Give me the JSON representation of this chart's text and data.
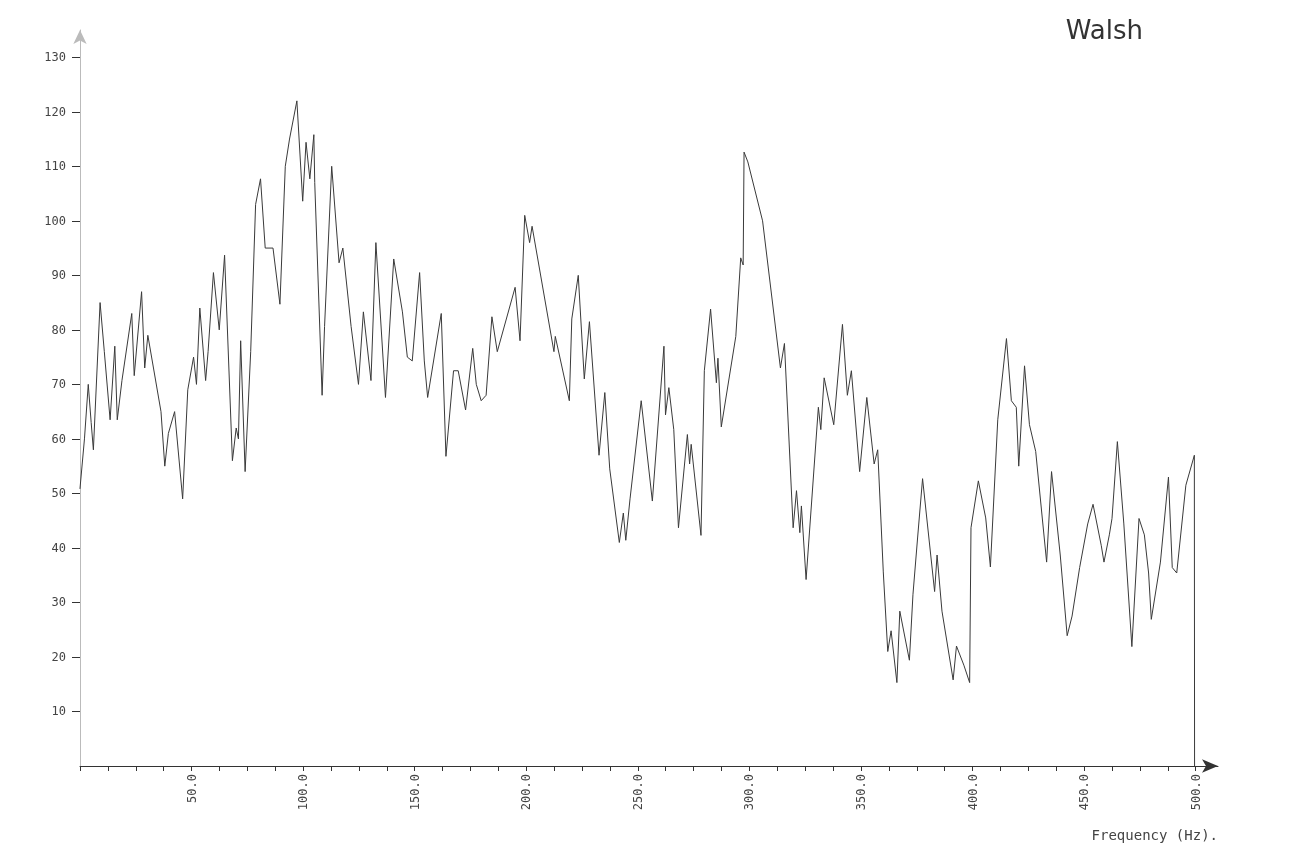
{
  "chart_data": {
    "type": "line",
    "title": "Walsh",
    "xlabel": "Frequency (Hz).",
    "x": [
      0,
      2,
      3.7,
      5,
      6,
      9,
      10.9,
      13.5,
      15.6,
      16.7,
      18.8,
      23.2,
      24.3,
      27.6,
      29,
      30.4,
      36.3,
      38,
      39.6,
      42.4,
      46,
      48.3,
      50.9,
      52.2,
      53.7,
      56.3,
      57.4,
      59.8,
      62.4,
      64.8,
      68.3,
      70,
      71,
      72,
      74,
      76.5,
      78.7,
      80.9,
      83,
      86.5,
      89.6,
      92,
      93.9,
      97.2,
      99.8,
      101.3,
      103,
      104.8,
      105.2,
      108.5,
      109.6,
      112.8,
      116.1,
      117.8,
      121.5,
      124.8,
      127,
      130.4,
      132.6,
      136.9,
      140.6,
      144.5,
      146.7,
      148.9,
      152.2,
      154.3,
      155.8,
      161.9,
      164,
      167.4,
      169.5,
      172.8,
      176,
      177.6,
      179.8,
      182,
      184.6,
      187,
      195,
      197.2,
      199.3,
      201.5,
      202.6,
      212.4,
      213,
      219.3,
      220.4,
      223.3,
      226,
      228.3,
      232.6,
      235.2,
      237.4,
      241.7,
      243.5,
      244.6,
      246.5,
      251.5,
      256.5,
      261.7,
      262.4,
      263.9,
      266.1,
      268.2,
      272.2,
      273.2,
      273.9,
      278.3,
      279.8,
      282.6,
      285.2,
      285.9,
      287.4,
      293.9,
      296.1,
      297.2,
      297.6,
      299.3,
      305.9,
      313.9,
      315.7,
      319.6,
      321.1,
      322.6,
      323.3,
      325.4,
      330.9,
      332,
      333.5,
      337.8,
      341.7,
      343.9,
      345.7,
      349.4,
      352.6,
      355.9,
      357.5,
      360,
      362,
      363.5,
      366.1,
      367.4,
      371.7,
      373.3,
      375.4,
      377.6,
      383,
      384.1,
      386.3,
      391.3,
      392.8,
      396.1,
      398.7,
      399.3,
      402.6,
      405.9,
      408,
      411.3,
      415.2,
      417.4,
      419.6,
      420.7,
      423.3,
      425.5,
      428.3,
      433.2,
      435.4,
      439.3,
      442.4,
      444.6,
      448,
      451.6,
      454,
      457.7,
      458.9,
      461.3,
      462.5,
      464.9,
      467.8,
      471.4,
      474.6,
      477,
      478.9,
      480.1,
      484.2,
      487.8,
      489.5,
      491.5,
      495.6,
      499.4,
      499.5
    ],
    "values": [
      50.9,
      60,
      70,
      63,
      58,
      85,
      76,
      63.5,
      77,
      63.5,
      70.7,
      83,
      71.6,
      87,
      73,
      79,
      65,
      55,
      61,
      65,
      49,
      69,
      75,
      70,
      84,
      70.7,
      76,
      90.5,
      80,
      93.7,
      56,
      62,
      60,
      78,
      54,
      76,
      103,
      107.7,
      95,
      95,
      84.7,
      110,
      115,
      122,
      103.6,
      114.4,
      107.7,
      115.8,
      107,
      68,
      80.6,
      110,
      92.3,
      95,
      80.6,
      70,
      83.3,
      70.7,
      96,
      67.6,
      93,
      83.3,
      75,
      74.3,
      90.5,
      74.3,
      67.6,
      83,
      56.8,
      72.5,
      72.5,
      65.3,
      76.6,
      70,
      67,
      68,
      82.4,
      76,
      87.8,
      78,
      101,
      96,
      99,
      76,
      78.8,
      67,
      82,
      90,
      71,
      81.5,
      57,
      68.5,
      54.5,
      41,
      46.4,
      41.4,
      49,
      67,
      48.6,
      77,
      64.4,
      69.4,
      61.7,
      43.7,
      60.8,
      55.4,
      59,
      42.3,
      72.5,
      83.8,
      70.3,
      74.8,
      62.2,
      78.8,
      93.2,
      91.9,
      112.6,
      110.8,
      100,
      73,
      77.5,
      43.7,
      50.5,
      42.8,
      47.7,
      34.2,
      65.8,
      61.7,
      71.2,
      62.6,
      81,
      68,
      72.5,
      54,
      67.6,
      55.4,
      58,
      35.6,
      21,
      24.8,
      15.3,
      28.4,
      19.4,
      31.5,
      42,
      52.7,
      32,
      38.7,
      28.4,
      15.8,
      22,
      18.5,
      15.3,
      43.7,
      52.3,
      45.5,
      36.5,
      63.5,
      78.4,
      67,
      65.8,
      55,
      73.4,
      62.6,
      57.7,
      37.4,
      54,
      38.7,
      23.9,
      27.5,
      36.4,
      44.4,
      48,
      40.4,
      37.4,
      42.4,
      45.4,
      59.5,
      44.4,
      21.9,
      45.4,
      42.4,
      35.4,
      26.9,
      37.4,
      53,
      36.4,
      35.4,
      51.5,
      57,
      0
    ],
    "color": "#3a3a3a",
    "marker": "none",
    "line_style": "solid",
    "grid": false,
    "xlim": [
      0,
      510
    ],
    "ylim": [
      0,
      135
    ],
    "xticks": [
      {
        "value": 0,
        "label": null
      },
      {
        "value": 12.5,
        "label": null
      },
      {
        "value": 25,
        "label": null
      },
      {
        "value": 37.5,
        "label": null
      },
      {
        "value": 50,
        "label": "50.0"
      },
      {
        "value": 62.5,
        "label": null
      },
      {
        "value": 75,
        "label": null
      },
      {
        "value": 87.5,
        "label": null
      },
      {
        "value": 100,
        "label": "100.0"
      },
      {
        "value": 112.5,
        "label": null
      },
      {
        "value": 125,
        "label": null
      },
      {
        "value": 137.5,
        "label": null
      },
      {
        "value": 150,
        "label": "150.0"
      },
      {
        "value": 162.5,
        "label": null
      },
      {
        "value": 175,
        "label": null
      },
      {
        "value": 187.5,
        "label": null
      },
      {
        "value": 200,
        "label": "200.0"
      },
      {
        "value": 212.5,
        "label": null
      },
      {
        "value": 225,
        "label": null
      },
      {
        "value": 237.5,
        "label": null
      },
      {
        "value": 250,
        "label": "250.0"
      },
      {
        "value": 262.5,
        "label": null
      },
      {
        "value": 275,
        "label": null
      },
      {
        "value": 287.5,
        "label": null
      },
      {
        "value": 300,
        "label": "300.0"
      },
      {
        "value": 312.5,
        "label": null
      },
      {
        "value": 325,
        "label": null
      },
      {
        "value": 337.5,
        "label": null
      },
      {
        "value": 350,
        "label": "350.0"
      },
      {
        "value": 362.5,
        "label": null
      },
      {
        "value": 375,
        "label": null
      },
      {
        "value": 387.5,
        "label": null
      },
      {
        "value": 400,
        "label": "400.0"
      },
      {
        "value": 412.5,
        "label": null
      },
      {
        "value": 425,
        "label": null
      },
      {
        "value": 437.5,
        "label": null
      },
      {
        "value": 450,
        "label": "450.0"
      },
      {
        "value": 462.5,
        "label": null
      },
      {
        "value": 475,
        "label": null
      },
      {
        "value": 487.5,
        "label": null
      },
      {
        "value": 500,
        "label": "500.0"
      }
    ],
    "yticks": [
      10,
      20,
      30,
      40,
      50,
      60,
      70,
      80,
      90,
      100,
      110,
      120,
      130
    ]
  }
}
